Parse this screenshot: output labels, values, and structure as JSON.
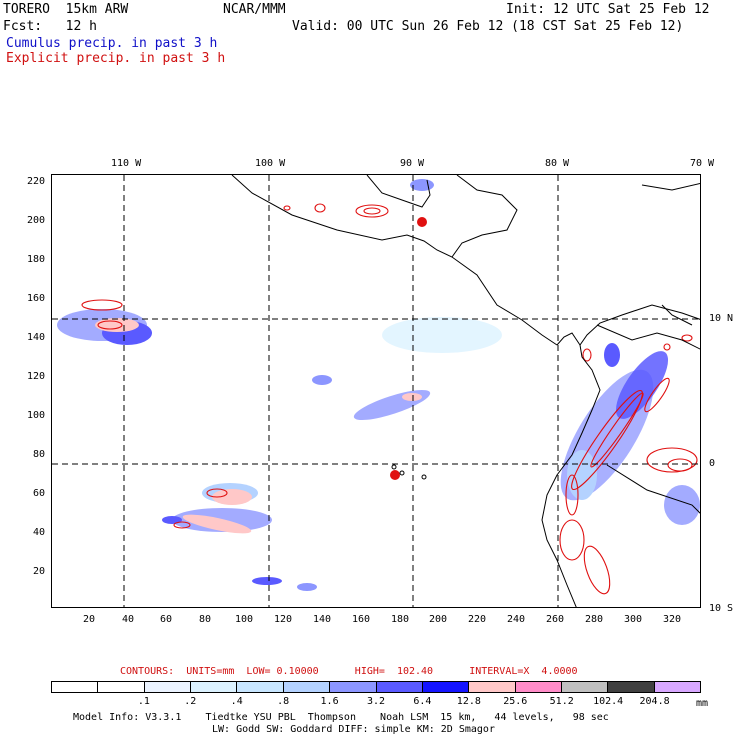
{
  "header": {
    "line1_left": "TORERO  15km ARW",
    "line1_center": "NCAR/MMM",
    "line1_right": "Init: 12 UTC Sat 25 Feb 12",
    "line2_left": "Fcst:   12 h",
    "line2_right": "Valid: 00 UTC Sun 26 Feb 12 (18 CST Sat 25 Feb 12)",
    "cumulus_label": "Cumulus precip. in past 3 h",
    "explicit_label": "Explicit precip. in past 3 h"
  },
  "colors": {
    "cumulus_text": "#1010c8",
    "explicit_text": "#d01010",
    "coastline": "#000000",
    "contour": "#e01010"
  },
  "map": {
    "top_lon_labels": [
      "110 W",
      "100 W",
      "90 W",
      "80 W",
      "70 W"
    ],
    "right_lat_labels": [
      "10 N",
      "0",
      "10 S"
    ],
    "y_ticks": [
      "220",
      "200",
      "180",
      "160",
      "140",
      "120",
      "100",
      "80",
      "60",
      "40",
      "20"
    ],
    "x_ticks": [
      "20",
      "40",
      "60",
      "80",
      "100",
      "120",
      "140",
      "160",
      "180",
      "200",
      "220",
      "240",
      "260",
      "280",
      "300",
      "320"
    ]
  },
  "contours_text": {
    "label": "CONTOURS:  UNITS=mm  LOW= 0.10000      HIGH=  102.40      INTERVAL=X  4.0000"
  },
  "colorbar": {
    "colors": [
      "#ffffff",
      "#ffffff",
      "#ebf3ff",
      "#dcf2ff",
      "#c8e6ff",
      "#b4d2ff",
      "#8c96ff",
      "#5a5aff",
      "#1414ff",
      "#ffc8c8",
      "#ff8cc8",
      "#c0c0c0",
      "#404040",
      "#d8a8ff"
    ],
    "labels": [
      ".1",
      ".2",
      ".4",
      ".8",
      "1.6",
      "3.2",
      "6.4",
      "12.8",
      "25.6",
      "51.2",
      "102.4",
      "204.8"
    ],
    "units": "mm"
  },
  "footer": {
    "line1": "Model Info: V3.3.1    Tiedtke YSU PBL  Thompson    Noah LSM  15 km,   44 levels,   98 sec",
    "line2": "LW: Godd SW: Goddard DIFF: simple KM: 2D Smagor"
  }
}
